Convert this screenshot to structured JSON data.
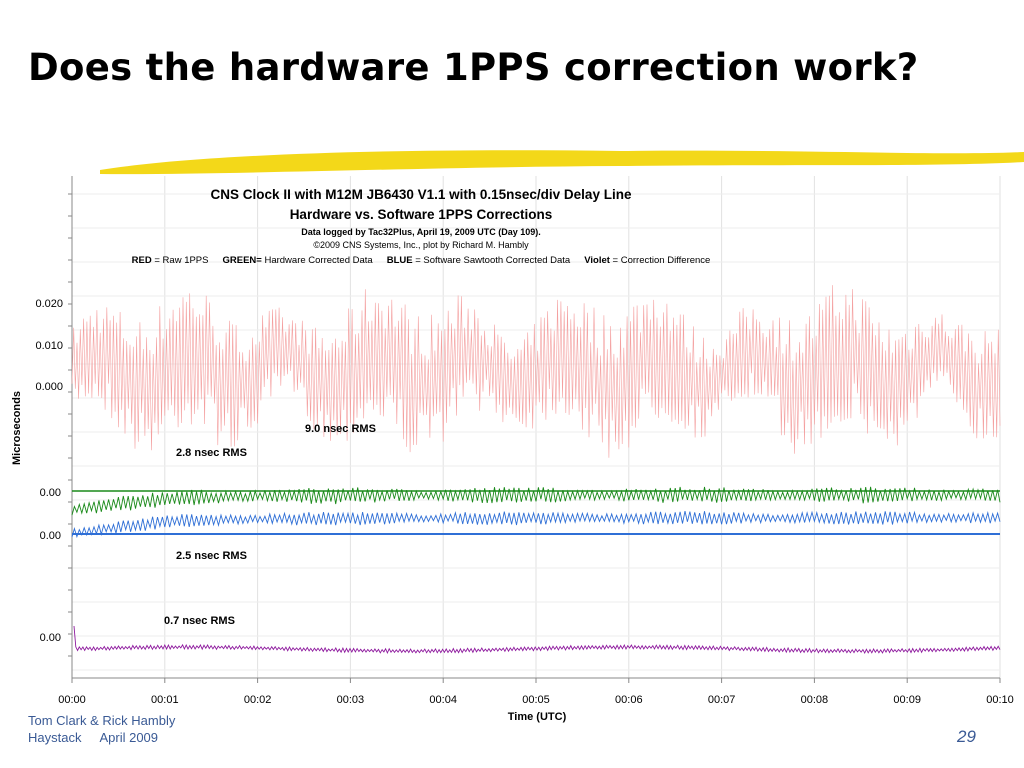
{
  "slide": {
    "title": "Does the hardware 1PPS correction work?",
    "footer_author": "Tom Clark & Rick Hambly",
    "footer_place": "Haystack",
    "footer_date": "April 2009",
    "page_number": "29",
    "underline_color": "#f2d400"
  },
  "chart_data": {
    "type": "line",
    "title": "CNS Clock II with M12M JB6430 V1.1 with 0.15nsec/div Delay Line",
    "subtitle": "Hardware vs. Software 1PPS Corrections",
    "note": "Data logged by Tac32Plus, April 19, 2009 UTC (Day 109).",
    "copyright": "©2009 CNS Systems, Inc., plot by Richard M. Hambly",
    "legend": [
      {
        "key": "RED",
        "sep": " = ",
        "text": "Raw 1PPS"
      },
      {
        "key": "GREEN=",
        "sep": " ",
        "text": "Hardware Corrected Data"
      },
      {
        "key": "BLUE",
        "sep": " = ",
        "text": "Software Sawtooth Corrected Data"
      },
      {
        "key": "Violet",
        "sep": " = ",
        "text": "Correction Difference"
      }
    ],
    "ylabel": "Microseconds",
    "xlabel": "Time (UTC)",
    "x_ticks": [
      "00:00",
      "00:01",
      "00:02",
      "00:03",
      "00:04",
      "00:05",
      "00:06",
      "00:07",
      "00:08",
      "00:09",
      "00:10"
    ],
    "xlim_minutes": [
      0,
      10
    ],
    "y_tick_labels": [
      "0.020",
      "0.010",
      "0.000",
      "0.00",
      "0.00",
      "0.00"
    ],
    "series": [
      {
        "name": "Raw 1PPS",
        "color": "#f4a0a0",
        "offset": 0.0,
        "rms": "9.0 nsec RMS",
        "amplitude_us": 0.018
      },
      {
        "name": "Hardware Corrected Data",
        "color": "#1a8a1a",
        "offset": 0.0,
        "rms": "2.8 nsec RMS",
        "amplitude_us": 0.006
      },
      {
        "name": "Software Sawtooth Corrected Data",
        "color": "#2f6fd6",
        "offset": 0.0,
        "rms": "2.5 nsec RMS",
        "amplitude_us": 0.005
      },
      {
        "name": "Correction Difference",
        "color": "#8e1a9e",
        "offset": 0.0,
        "rms": "0.7 nsec RMS",
        "amplitude_us": 0.0015
      }
    ],
    "grid": true,
    "legend_placement": "top"
  }
}
